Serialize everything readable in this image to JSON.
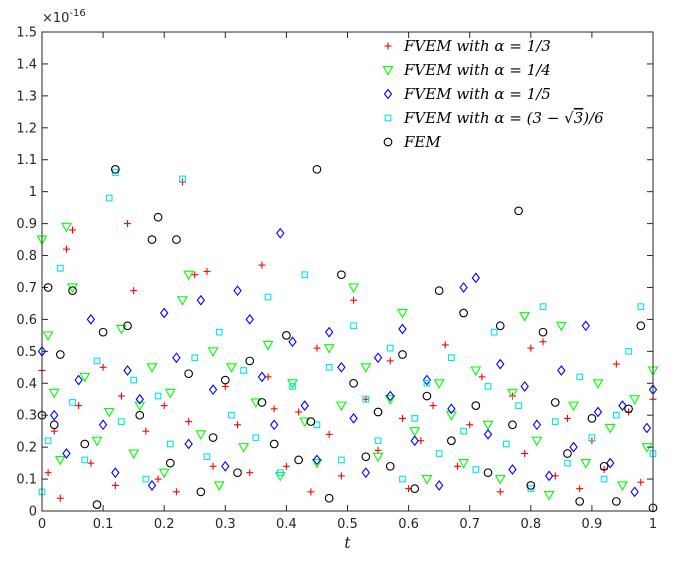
{
  "chart_data": {
    "type": "scatter",
    "xlabel": "t",
    "ylabel": "",
    "y_exponent": "x 10-16",
    "xlim": [
      0,
      1
    ],
    "ylim": [
      0,
      1.5
    ],
    "x_ticks": [
      "0",
      "0.1",
      "0.2",
      "0.3",
      "0.4",
      "0.5",
      "0.6",
      "0.7",
      "0.8",
      "0.9",
      "1"
    ],
    "y_ticks": [
      "0",
      "0.1",
      "0.2",
      "0.3",
      "0.4",
      "0.5",
      "0.6",
      "0.7",
      "0.8",
      "0.9",
      "1",
      "1.1",
      "1.2",
      "1.3",
      "1.4",
      "1.5"
    ],
    "grid": false,
    "legend_position": "top-right",
    "series": [
      {
        "name": "FVEM with α = 1/3",
        "legend_parts": [
          "FVEM with ",
          "α",
          " = 1/3"
        ],
        "marker": "plus",
        "color": "#ff0000",
        "points": [
          [
            0.0,
            0.44
          ],
          [
            0.01,
            0.12
          ],
          [
            0.02,
            0.25
          ],
          [
            0.03,
            0.04
          ],
          [
            0.04,
            0.82
          ],
          [
            0.05,
            0.88
          ],
          [
            0.06,
            0.33
          ],
          [
            0.08,
            0.15
          ],
          [
            0.1,
            0.45
          ],
          [
            0.12,
            0.08
          ],
          [
            0.13,
            0.36
          ],
          [
            0.14,
            0.9
          ],
          [
            0.15,
            0.69
          ],
          [
            0.17,
            0.25
          ],
          [
            0.19,
            0.1
          ],
          [
            0.2,
            0.33
          ],
          [
            0.22,
            0.06
          ],
          [
            0.23,
            1.03
          ],
          [
            0.24,
            0.28
          ],
          [
            0.25,
            0.74
          ],
          [
            0.27,
            0.75
          ],
          [
            0.28,
            0.14
          ],
          [
            0.3,
            0.39
          ],
          [
            0.32,
            0.27
          ],
          [
            0.34,
            0.12
          ],
          [
            0.36,
            0.77
          ],
          [
            0.37,
            0.42
          ],
          [
            0.38,
            0.32
          ],
          [
            0.4,
            0.14
          ],
          [
            0.42,
            0.31
          ],
          [
            0.44,
            0.06
          ],
          [
            0.45,
            0.51
          ],
          [
            0.47,
            0.24
          ],
          [
            0.49,
            0.11
          ],
          [
            0.51,
            0.66
          ],
          [
            0.53,
            0.35
          ],
          [
            0.55,
            0.19
          ],
          [
            0.57,
            0.47
          ],
          [
            0.59,
            0.29
          ],
          [
            0.6,
            0.07
          ],
          [
            0.62,
            0.22
          ],
          [
            0.64,
            0.33
          ],
          [
            0.66,
            0.52
          ],
          [
            0.68,
            0.14
          ],
          [
            0.7,
            0.27
          ],
          [
            0.72,
            0.42
          ],
          [
            0.75,
            0.06
          ],
          [
            0.77,
            0.36
          ],
          [
            0.79,
            0.18
          ],
          [
            0.8,
            0.51
          ],
          [
            0.82,
            0.53
          ],
          [
            0.84,
            0.11
          ],
          [
            0.86,
            0.29
          ],
          [
            0.88,
            0.07
          ],
          [
            0.9,
            0.22
          ],
          [
            0.92,
            0.13
          ],
          [
            0.94,
            0.46
          ],
          [
            0.96,
            0.31
          ],
          [
            0.98,
            0.09
          ],
          [
            1.0,
            0.35
          ]
        ]
      },
      {
        "name": "FVEM with α = 1/4",
        "legend_parts": [
          "FVEM with ",
          "α",
          " = 1/4"
        ],
        "marker": "triangle",
        "color": "#00ff00",
        "points": [
          [
            0.0,
            0.85
          ],
          [
            0.01,
            0.55
          ],
          [
            0.02,
            0.37
          ],
          [
            0.03,
            0.16
          ],
          [
            0.04,
            0.89
          ],
          [
            0.05,
            0.7
          ],
          [
            0.07,
            0.42
          ],
          [
            0.09,
            0.22
          ],
          [
            0.11,
            0.31
          ],
          [
            0.13,
            0.57
          ],
          [
            0.15,
            0.18
          ],
          [
            0.16,
            0.33
          ],
          [
            0.18,
            0.45
          ],
          [
            0.2,
            0.12
          ],
          [
            0.21,
            0.37
          ],
          [
            0.23,
            0.66
          ],
          [
            0.24,
            0.74
          ],
          [
            0.26,
            0.24
          ],
          [
            0.28,
            0.5
          ],
          [
            0.29,
            0.08
          ],
          [
            0.31,
            0.45
          ],
          [
            0.33,
            0.2
          ],
          [
            0.35,
            0.34
          ],
          [
            0.37,
            0.52
          ],
          [
            0.39,
            0.11
          ],
          [
            0.41,
            0.4
          ],
          [
            0.43,
            0.28
          ],
          [
            0.45,
            0.15
          ],
          [
            0.47,
            0.51
          ],
          [
            0.49,
            0.33
          ],
          [
            0.51,
            0.7
          ],
          [
            0.53,
            0.45
          ],
          [
            0.55,
            0.17
          ],
          [
            0.57,
            0.35
          ],
          [
            0.59,
            0.62
          ],
          [
            0.61,
            0.25
          ],
          [
            0.63,
            0.1
          ],
          [
            0.65,
            0.4
          ],
          [
            0.67,
            0.3
          ],
          [
            0.69,
            0.15
          ],
          [
            0.71,
            0.44
          ],
          [
            0.73,
            0.27
          ],
          [
            0.75,
            0.1
          ],
          [
            0.77,
            0.37
          ],
          [
            0.79,
            0.61
          ],
          [
            0.81,
            0.22
          ],
          [
            0.83,
            0.05
          ],
          [
            0.85,
            0.58
          ],
          [
            0.87,
            0.33
          ],
          [
            0.89,
            0.15
          ],
          [
            0.91,
            0.4
          ],
          [
            0.93,
            0.26
          ],
          [
            0.95,
            0.08
          ],
          [
            0.97,
            0.35
          ],
          [
            0.99,
            0.2
          ],
          [
            1.0,
            0.44
          ]
        ]
      },
      {
        "name": "FVEM with α = 1/5",
        "legend_parts": [
          "FVEM with ",
          "α",
          " = 1/5"
        ],
        "marker": "diamond",
        "color": "#0000ff",
        "points": [
          [
            0.0,
            0.5
          ],
          [
            0.02,
            0.3
          ],
          [
            0.04,
            0.18
          ],
          [
            0.06,
            0.41
          ],
          [
            0.08,
            0.6
          ],
          [
            0.1,
            0.27
          ],
          [
            0.12,
            0.12
          ],
          [
            0.14,
            0.44
          ],
          [
            0.16,
            0.35
          ],
          [
            0.18,
            0.08
          ],
          [
            0.2,
            0.62
          ],
          [
            0.22,
            0.48
          ],
          [
            0.24,
            0.21
          ],
          [
            0.26,
            0.66
          ],
          [
            0.28,
            0.38
          ],
          [
            0.3,
            0.14
          ],
          [
            0.32,
            0.69
          ],
          [
            0.34,
            0.6
          ],
          [
            0.36,
            0.42
          ],
          [
            0.38,
            0.27
          ],
          [
            0.39,
            0.87
          ],
          [
            0.41,
            0.53
          ],
          [
            0.43,
            0.33
          ],
          [
            0.45,
            0.16
          ],
          [
            0.47,
            0.56
          ],
          [
            0.49,
            0.45
          ],
          [
            0.51,
            0.29
          ],
          [
            0.53,
            0.12
          ],
          [
            0.55,
            0.48
          ],
          [
            0.57,
            0.36
          ],
          [
            0.59,
            0.57
          ],
          [
            0.61,
            0.22
          ],
          [
            0.63,
            0.41
          ],
          [
            0.65,
            0.08
          ],
          [
            0.67,
            0.32
          ],
          [
            0.69,
            0.7
          ],
          [
            0.71,
            0.73
          ],
          [
            0.73,
            0.24
          ],
          [
            0.75,
            0.46
          ],
          [
            0.77,
            0.13
          ],
          [
            0.79,
            0.39
          ],
          [
            0.81,
            0.27
          ],
          [
            0.83,
            0.11
          ],
          [
            0.85,
            0.44
          ],
          [
            0.87,
            0.2
          ],
          [
            0.89,
            0.58
          ],
          [
            0.91,
            0.31
          ],
          [
            0.93,
            0.15
          ],
          [
            0.95,
            0.33
          ],
          [
            0.97,
            0.06
          ],
          [
            0.99,
            0.26
          ],
          [
            1.0,
            0.38
          ]
        ]
      },
      {
        "name": "FVEM with α = (3 − √3)/6",
        "legend_parts": [
          "FVEM with ",
          "α",
          " = (3 − ",
          "√3",
          ")/6"
        ],
        "marker": "square",
        "color": "#00e5ee",
        "points": [
          [
            0.0,
            0.06
          ],
          [
            0.01,
            0.22
          ],
          [
            0.03,
            0.76
          ],
          [
            0.05,
            0.34
          ],
          [
            0.07,
            0.16
          ],
          [
            0.09,
            0.47
          ],
          [
            0.11,
            0.98
          ],
          [
            0.12,
            1.06
          ],
          [
            0.13,
            0.28
          ],
          [
            0.15,
            0.41
          ],
          [
            0.17,
            0.1
          ],
          [
            0.19,
            0.36
          ],
          [
            0.21,
            0.21
          ],
          [
            0.23,
            1.04
          ],
          [
            0.25,
            0.48
          ],
          [
            0.27,
            0.17
          ],
          [
            0.29,
            0.56
          ],
          [
            0.31,
            0.3
          ],
          [
            0.33,
            0.44
          ],
          [
            0.35,
            0.23
          ],
          [
            0.37,
            0.67
          ],
          [
            0.39,
            0.12
          ],
          [
            0.41,
            0.39
          ],
          [
            0.43,
            0.74
          ],
          [
            0.45,
            0.27
          ],
          [
            0.47,
            0.45
          ],
          [
            0.49,
            0.16
          ],
          [
            0.51,
            0.58
          ],
          [
            0.53,
            0.35
          ],
          [
            0.55,
            0.22
          ],
          [
            0.57,
            0.51
          ],
          [
            0.59,
            0.1
          ],
          [
            0.61,
            0.29
          ],
          [
            0.63,
            0.4
          ],
          [
            0.65,
            0.18
          ],
          [
            0.67,
            0.48
          ],
          [
            0.69,
            0.25
          ],
          [
            0.71,
            0.13
          ],
          [
            0.73,
            0.39
          ],
          [
            0.74,
            0.56
          ],
          [
            0.76,
            0.21
          ],
          [
            0.78,
            0.33
          ],
          [
            0.8,
            0.07
          ],
          [
            0.82,
            0.64
          ],
          [
            0.84,
            0.28
          ],
          [
            0.86,
            0.15
          ],
          [
            0.88,
            0.42
          ],
          [
            0.9,
            0.23
          ],
          [
            0.92,
            0.1
          ],
          [
            0.94,
            0.3
          ],
          [
            0.96,
            0.5
          ],
          [
            0.98,
            0.64
          ],
          [
            1.0,
            0.18
          ]
        ]
      },
      {
        "name": "FEM",
        "legend_parts": [
          "FEM"
        ],
        "marker": "circle",
        "color": "#000000",
        "points": [
          [
            0.0,
            0.3
          ],
          [
            0.01,
            0.7
          ],
          [
            0.02,
            0.27
          ],
          [
            0.03,
            0.49
          ],
          [
            0.05,
            0.69
          ],
          [
            0.07,
            0.21
          ],
          [
            0.09,
            0.02
          ],
          [
            0.1,
            0.56
          ],
          [
            0.12,
            1.07
          ],
          [
            0.14,
            0.58
          ],
          [
            0.16,
            0.3
          ],
          [
            0.18,
            0.85
          ],
          [
            0.19,
            0.92
          ],
          [
            0.21,
            0.15
          ],
          [
            0.22,
            0.85
          ],
          [
            0.24,
            0.43
          ],
          [
            0.26,
            0.06
          ],
          [
            0.28,
            0.23
          ],
          [
            0.3,
            0.41
          ],
          [
            0.32,
            0.12
          ],
          [
            0.34,
            0.47
          ],
          [
            0.36,
            0.34
          ],
          [
            0.38,
            0.21
          ],
          [
            0.4,
            0.55
          ],
          [
            0.42,
            0.16
          ],
          [
            0.44,
            0.28
          ],
          [
            0.45,
            1.07
          ],
          [
            0.47,
            0.04
          ],
          [
            0.49,
            0.74
          ],
          [
            0.51,
            0.4
          ],
          [
            0.53,
            0.17
          ],
          [
            0.55,
            0.31
          ],
          [
            0.57,
            0.14
          ],
          [
            0.59,
            0.49
          ],
          [
            0.61,
            0.07
          ],
          [
            0.63,
            0.36
          ],
          [
            0.65,
            0.69
          ],
          [
            0.67,
            0.22
          ],
          [
            0.69,
            0.62
          ],
          [
            0.71,
            0.33
          ],
          [
            0.73,
            0.12
          ],
          [
            0.75,
            0.58
          ],
          [
            0.77,
            0.27
          ],
          [
            0.78,
            0.94
          ],
          [
            0.8,
            0.08
          ],
          [
            0.82,
            0.56
          ],
          [
            0.84,
            0.34
          ],
          [
            0.86,
            0.18
          ],
          [
            0.88,
            0.03
          ],
          [
            0.9,
            0.29
          ],
          [
            0.92,
            0.14
          ],
          [
            0.94,
            0.03
          ],
          [
            0.96,
            0.32
          ],
          [
            0.98,
            0.58
          ],
          [
            1.0,
            0.01
          ]
        ]
      }
    ]
  }
}
